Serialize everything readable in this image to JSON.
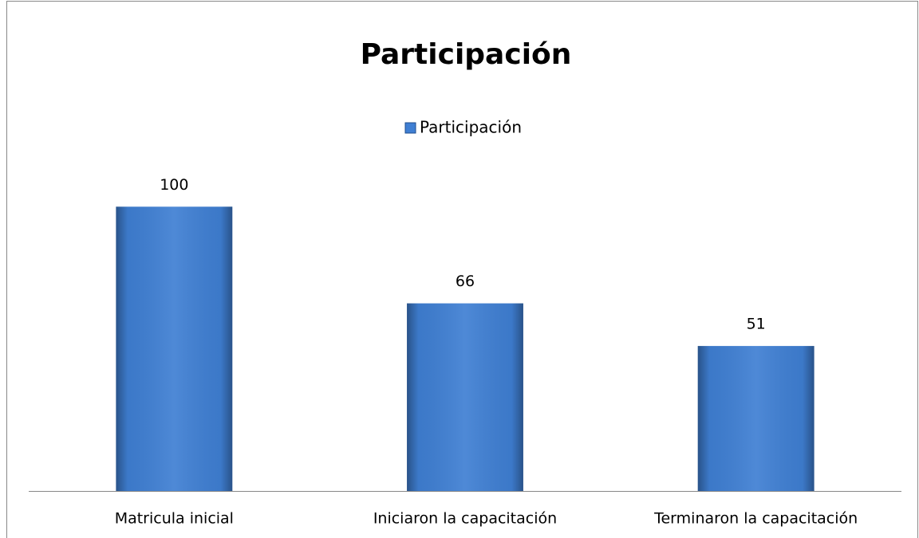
{
  "chart_data": {
    "type": "bar",
    "title": "Participación",
    "categories": [
      "Matricula inicial",
      "Iniciaron la capacitación",
      "Terminaron la capacitación"
    ],
    "series": [
      {
        "name": "Participación",
        "color": "#3f7fd3",
        "values": [
          100,
          66,
          51
        ]
      }
    ],
    "ylim": [
      0,
      120
    ],
    "legend": "top"
  }
}
